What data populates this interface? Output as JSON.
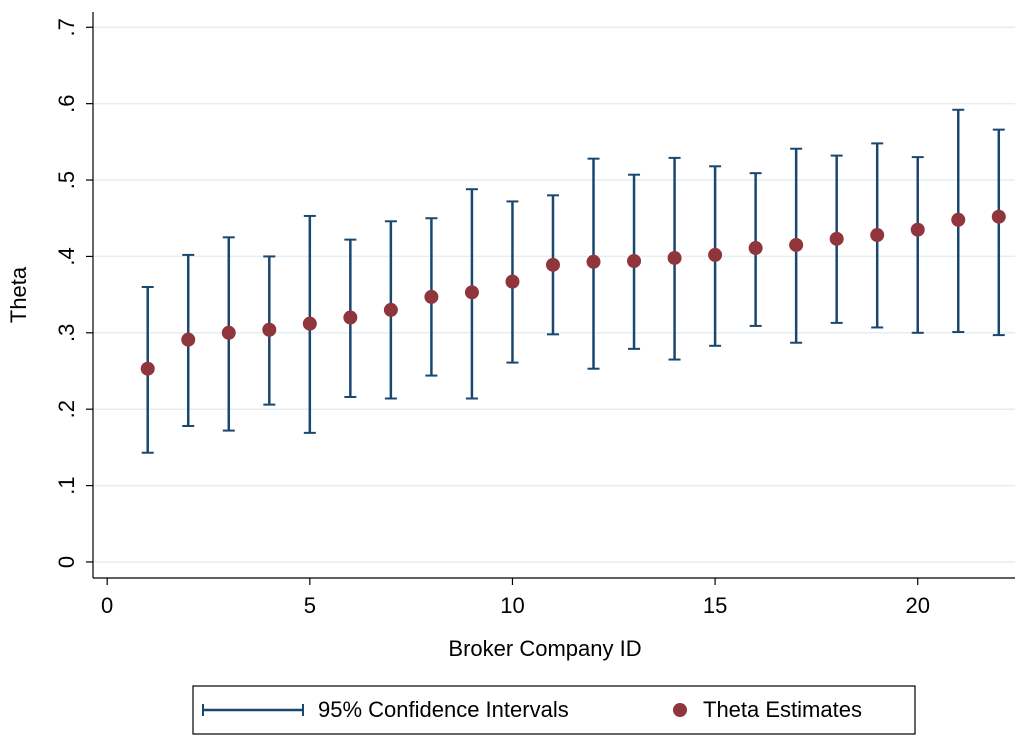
{
  "chart_data": {
    "type": "errorbar",
    "x_label": "Broker Company ID",
    "y_label": "Theta",
    "x": [
      1,
      2,
      3,
      4,
      5,
      6,
      7,
      8,
      9,
      10,
      11,
      12,
      13,
      14,
      15,
      16,
      17,
      18,
      19,
      20,
      21,
      22
    ],
    "series": [
      {
        "name": "95% Confidence Intervals",
        "color": "#1a476f",
        "lower": [
          0.143,
          0.178,
          0.172,
          0.206,
          0.169,
          0.216,
          0.214,
          0.244,
          0.214,
          0.261,
          0.298,
          0.253,
          0.279,
          0.265,
          0.283,
          0.309,
          0.287,
          0.313,
          0.307,
          0.3,
          0.301,
          0.297
        ],
        "upper": [
          0.36,
          0.402,
          0.425,
          0.4,
          0.453,
          0.422,
          0.446,
          0.45,
          0.488,
          0.472,
          0.48,
          0.528,
          0.507,
          0.529,
          0.518,
          0.509,
          0.541,
          0.532,
          0.548,
          0.53,
          0.592,
          0.566
        ]
      },
      {
        "name": "Theta Estimates",
        "color": "#90353b",
        "values": [
          0.253,
          0.291,
          0.3,
          0.304,
          0.312,
          0.32,
          0.33,
          0.347,
          0.353,
          0.367,
          0.389,
          0.393,
          0.394,
          0.398,
          0.402,
          0.411,
          0.415,
          0.423,
          0.428,
          0.435,
          0.448,
          0.452
        ]
      }
    ],
    "xlim": [
      -0.35,
      22.4
    ],
    "xticks": [
      0,
      5,
      10,
      15,
      20
    ],
    "ylim": [
      -0.021,
      0.72
    ],
    "yticks": [
      0,
      {
        "value": 0.1,
        "label": ".1"
      },
      {
        "value": 0.2,
        "label": ".2"
      },
      {
        "value": 0.3,
        "label": ".3"
      },
      {
        "value": 0.4,
        "label": ".4"
      },
      {
        "value": 0.5,
        "label": ".5"
      },
      {
        "value": 0.6,
        "label": ".6"
      },
      {
        "value": 0.7,
        "label": ".7"
      }
    ],
    "grid": true
  }
}
